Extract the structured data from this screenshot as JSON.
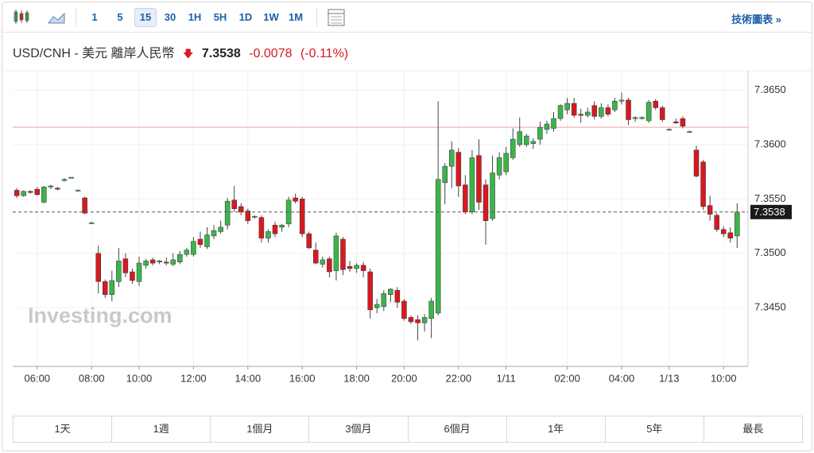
{
  "toolbar": {
    "intervals": [
      "1",
      "5",
      "15",
      "30",
      "1H",
      "5H",
      "1D",
      "1W",
      "1M"
    ],
    "link": "技術圖表 »"
  },
  "header": {
    "symbol": "USD/CNH - 美元 離岸人民幣",
    "change_percent": "(-0.11%)"
  },
  "chart_data": {
    "type": "candlestick",
    "watermark": "Investing.com",
    "last_price": 7.3538,
    "change": -0.0078,
    "previous_close": 7.3616,
    "up_color": "#3cb44b",
    "down_color": "#d71920",
    "ylim": [
      7.3396,
      7.3668
    ],
    "yticks": [
      {
        "value": 7.345,
        "label": "7.3450"
      },
      {
        "value": 7.35,
        "label": "7.3500"
      },
      {
        "value": 7.355,
        "label": "7.3550"
      },
      {
        "value": 7.36,
        "label": "7.3600"
      },
      {
        "value": 7.365,
        "label": "7.3650"
      }
    ],
    "xlim": [
      -0.6,
      107.6
    ],
    "xticks": [
      {
        "value": 3,
        "label": "06:00"
      },
      {
        "value": 11,
        "label": "08:00"
      },
      {
        "value": 18,
        "label": "10:00"
      },
      {
        "value": 26,
        "label": "12:00"
      },
      {
        "value": 34,
        "label": "14:00"
      },
      {
        "value": 42,
        "label": "16:00"
      },
      {
        "value": 50,
        "label": "18:00"
      },
      {
        "value": 57,
        "label": "20:00"
      },
      {
        "value": 65,
        "label": "22:00"
      },
      {
        "value": 72,
        "label": "1/11"
      },
      {
        "value": 81,
        "label": "02:00"
      },
      {
        "value": 89,
        "label": "04:00"
      },
      {
        "value": 96,
        "label": "1/13"
      },
      {
        "value": 104,
        "label": "10:00"
      }
    ],
    "grid": true,
    "ohlc": [
      [
        7.3558,
        7.356,
        7.3551,
        7.3553
      ],
      [
        7.3553,
        7.3558,
        7.3552,
        7.3557
      ],
      [
        7.3557,
        7.3558,
        7.3555,
        7.3556
      ],
      [
        7.3559,
        7.3561,
        7.3553,
        7.3554
      ],
      [
        7.3547,
        7.3562,
        7.3546,
        7.3561
      ],
      [
        7.3561,
        7.3563,
        7.3559,
        7.3562
      ],
      [
        7.356,
        7.3561,
        7.3558,
        7.3559
      ],
      [
        7.3567,
        7.3569,
        7.3566,
        7.3568
      ],
      [
        7.3569,
        7.357,
        7.3569,
        7.357
      ],
      [
        7.3558,
        7.3559,
        7.3557,
        7.3558
      ],
      [
        7.3551,
        7.3552,
        7.3536,
        7.3537
      ],
      [
        7.3528,
        7.3529,
        7.3527,
        7.3528
      ],
      [
        7.35,
        7.3507,
        7.3463,
        7.3474
      ],
      [
        7.3474,
        7.3476,
        7.3459,
        7.3462
      ],
      [
        7.3462,
        7.3484,
        7.3456,
        7.3475
      ],
      [
        7.3474,
        7.3505,
        7.3469,
        7.3493
      ],
      [
        7.3495,
        7.35,
        7.3478,
        7.3482
      ],
      [
        7.3483,
        7.3486,
        7.3472,
        7.3475
      ],
      [
        7.3474,
        7.3497,
        7.347,
        7.3491
      ],
      [
        7.3489,
        7.3495,
        7.3486,
        7.3493
      ],
      [
        7.3494,
        7.3496,
        7.3489,
        7.3491
      ],
      [
        7.3492,
        7.3494,
        7.349,
        7.3493
      ],
      [
        7.3492,
        7.3496,
        7.3489,
        7.3491
      ],
      [
        7.349,
        7.35,
        7.3488,
        7.3494
      ],
      [
        7.3492,
        7.3502,
        7.349,
        7.3499
      ],
      [
        7.3499,
        7.3505,
        7.3497,
        7.3503
      ],
      [
        7.3499,
        7.3515,
        7.3497,
        7.3511
      ],
      [
        7.3513,
        7.352,
        7.3505,
        7.3508
      ],
      [
        7.3506,
        7.3524,
        7.3504,
        7.3517
      ],
      [
        7.3516,
        7.3526,
        7.3513,
        7.3521
      ],
      [
        7.352,
        7.353,
        7.3518,
        7.3524
      ],
      [
        7.3526,
        7.3551,
        7.3522,
        7.3548
      ],
      [
        7.3549,
        7.3562,
        7.3538,
        7.3541
      ],
      [
        7.3543,
        7.3546,
        7.3535,
        7.3538
      ],
      [
        7.3539,
        7.3541,
        7.3527,
        7.353
      ],
      [
        7.3534,
        7.3535,
        7.3532,
        7.3534
      ],
      [
        7.3533,
        7.3535,
        7.351,
        7.3514
      ],
      [
        7.3514,
        7.3522,
        7.351,
        7.352
      ],
      [
        7.3526,
        7.3529,
        7.3515,
        7.3518
      ],
      [
        7.3524,
        7.3527,
        7.352,
        7.3526
      ],
      [
        7.3527,
        7.3552,
        7.3524,
        7.3549
      ],
      [
        7.3551,
        7.3555,
        7.3546,
        7.3548
      ],
      [
        7.355,
        7.3552,
        7.3515,
        7.3518
      ],
      [
        7.3518,
        7.352,
        7.3504,
        7.3505
      ],
      [
        7.3503,
        7.351,
        7.349,
        7.3491
      ],
      [
        7.349,
        7.3497,
        7.3487,
        7.3494
      ],
      [
        7.3495,
        7.3497,
        7.3478,
        7.3483
      ],
      [
        7.3484,
        7.3519,
        7.3475,
        7.3516
      ],
      [
        7.3513,
        7.3515,
        7.348,
        7.3485
      ],
      [
        7.3488,
        7.3493,
        7.3483,
        7.3486
      ],
      [
        7.3486,
        7.3491,
        7.3482,
        7.3489
      ],
      [
        7.3489,
        7.3492,
        7.3478,
        7.3484
      ],
      [
        7.3483,
        7.3486,
        7.344,
        7.3448
      ],
      [
        7.345,
        7.3458,
        7.3445,
        7.3453
      ],
      [
        7.3451,
        7.3466,
        7.3447,
        7.3463
      ],
      [
        7.3462,
        7.3468,
        7.3455,
        7.3467
      ],
      [
        7.3466,
        7.3469,
        7.345,
        7.3455
      ],
      [
        7.3456,
        7.3458,
        7.3438,
        7.344
      ],
      [
        7.3441,
        7.3443,
        7.3435,
        7.3437
      ],
      [
        7.3439,
        7.3443,
        7.342,
        7.3436
      ],
      [
        7.3436,
        7.3444,
        7.3428,
        7.3441
      ],
      [
        7.344,
        7.3459,
        7.3422,
        7.3456
      ],
      [
        7.3445,
        7.364,
        7.3443,
        7.3568
      ],
      [
        7.3565,
        7.3583,
        7.3545,
        7.358
      ],
      [
        7.358,
        7.3603,
        7.356,
        7.3595
      ],
      [
        7.3593,
        7.3597,
        7.3552,
        7.3562
      ],
      [
        7.3563,
        7.3572,
        7.3536,
        7.3538
      ],
      [
        7.3538,
        7.3595,
        7.3536,
        7.3588
      ],
      [
        7.359,
        7.3605,
        7.354,
        7.3547
      ],
      [
        7.3563,
        7.3568,
        7.3508,
        7.353
      ],
      [
        7.3532,
        7.359,
        7.353,
        7.3574
      ],
      [
        7.3572,
        7.3593,
        7.3568,
        7.3588
      ],
      [
        7.3575,
        7.3598,
        7.3572,
        7.3592
      ],
      [
        7.3588,
        7.3615,
        7.3586,
        7.3605
      ],
      [
        7.36,
        7.3625,
        7.3598,
        7.3612
      ],
      [
        7.36,
        7.361,
        7.3598,
        7.3608
      ],
      [
        7.3601,
        7.3606,
        7.3596,
        7.3603
      ],
      [
        7.3605,
        7.3621,
        7.36,
        7.3616
      ],
      [
        7.3614,
        7.3622,
        7.361,
        7.3619
      ],
      [
        7.3615,
        7.363,
        7.3612,
        7.3624
      ],
      [
        7.3624,
        7.3637,
        7.3622,
        7.3636
      ],
      [
        7.3632,
        7.3643,
        7.3628,
        7.3638
      ],
      [
        7.3638,
        7.3643,
        7.3625,
        7.3627
      ],
      [
        7.3628,
        7.3633,
        7.362,
        7.3627
      ],
      [
        7.3627,
        7.3634,
        7.3625,
        7.363
      ],
      [
        7.3636,
        7.364,
        7.3623,
        7.3626
      ],
      [
        7.3626,
        7.3638,
        7.3624,
        7.3634
      ],
      [
        7.3634,
        7.3637,
        7.3626,
        7.3628
      ],
      [
        7.3632,
        7.3643,
        7.363,
        7.364
      ],
      [
        7.364,
        7.3648,
        7.3637,
        7.3641
      ],
      [
        7.3641,
        7.3643,
        7.3618,
        7.3623
      ],
      [
        7.3624,
        7.3626,
        7.3621,
        7.3625
      ],
      [
        7.3624,
        7.3626,
        7.3623,
        7.3625
      ],
      [
        7.3622,
        7.3641,
        7.362,
        7.3639
      ],
      [
        7.364,
        7.3642,
        7.3632,
        7.3634
      ],
      [
        7.3634,
        7.3636,
        7.3621,
        7.3623
      ],
      [
        7.3614,
        7.3615,
        7.3613,
        7.3614
      ],
      [
        7.3621,
        7.3624,
        7.3619,
        7.362
      ],
      [
        7.3624,
        7.3626,
        7.3615,
        7.3617
      ],
      [
        7.3612,
        7.3613,
        7.3611,
        7.3612
      ],
      [
        7.3595,
        7.3599,
        7.357,
        7.3571
      ],
      [
        7.3584,
        7.3586,
        7.354,
        7.3543
      ],
      [
        7.3544,
        7.3553,
        7.353,
        7.3536
      ],
      [
        7.3535,
        7.3537,
        7.352,
        7.3522
      ],
      [
        7.3522,
        7.3525,
        7.3515,
        7.3518
      ],
      [
        7.3519,
        7.3524,
        7.351,
        7.3514
      ],
      [
        7.3516,
        7.3546,
        7.3505,
        7.3538
      ]
    ]
  },
  "range_buttons": [
    "1天",
    "1週",
    "1個月",
    "3個月",
    "6個月",
    "1年",
    "5年",
    "最長"
  ]
}
